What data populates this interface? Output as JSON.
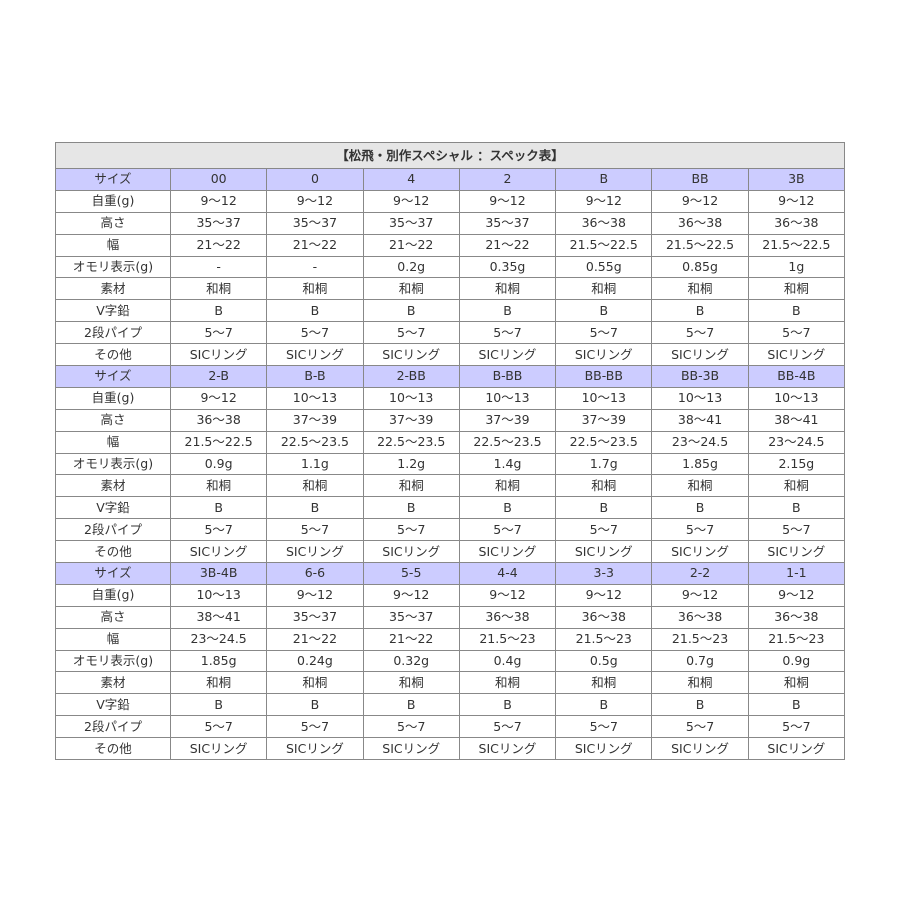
{
  "title": "【松飛・別作スペシャル ：スペック表】",
  "colors": {
    "header_bg": "#ccccff",
    "title_bg": "#e6e6e6",
    "border": "#888888"
  },
  "row_labels": [
    "自重(g)",
    "高さ",
    "幅",
    "オモリ表示(g)",
    "素材",
    "V字鉛",
    "2段パイプ",
    "その他"
  ],
  "size_label": "サイズ",
  "blocks": [
    {
      "sizes": [
        "00",
        "0",
        "4",
        "2",
        "B",
        "BB",
        "3B"
      ],
      "rows": [
        [
          "9～12",
          "9～12",
          "9～12",
          "9～12",
          "9～12",
          "9～12",
          "9～12"
        ],
        [
          "35～37",
          "35～37",
          "35～37",
          "35～37",
          "36～38",
          "36～38",
          "36～38"
        ],
        [
          "21～22",
          "21～22",
          "21～22",
          "21～22",
          "21.5～22.5",
          "21.5～22.5",
          "21.5～22.5"
        ],
        [
          "-",
          "-",
          "0.2g",
          "0.35g",
          "0.55g",
          "0.85g",
          "1g"
        ],
        [
          "和桐",
          "和桐",
          "和桐",
          "和桐",
          "和桐",
          "和桐",
          "和桐"
        ],
        [
          "B",
          "B",
          "B",
          "B",
          "B",
          "B",
          "B"
        ],
        [
          "5～7",
          "5～7",
          "5～7",
          "5～7",
          "5～7",
          "5～7",
          "5～7"
        ],
        [
          "SICリング",
          "SICリング",
          "SICリング",
          "SICリング",
          "SICリング",
          "SICリング",
          "SICリング"
        ]
      ]
    },
    {
      "sizes": [
        "2-B",
        "B-B",
        "2-BB",
        "B-BB",
        "BB-BB",
        "BB-3B",
        "BB-4B"
      ],
      "rows": [
        [
          "9～12",
          "10～13",
          "10～13",
          "10～13",
          "10～13",
          "10～13",
          "10～13"
        ],
        [
          "36～38",
          "37～39",
          "37～39",
          "37～39",
          "37～39",
          "38～41",
          "38～41"
        ],
        [
          "21.5～22.5",
          "22.5～23.5",
          "22.5～23.5",
          "22.5～23.5",
          "22.5～23.5",
          "23～24.5",
          "23～24.5"
        ],
        [
          "0.9g",
          "1.1g",
          "1.2g",
          "1.4g",
          "1.7g",
          "1.85g",
          "2.15g"
        ],
        [
          "和桐",
          "和桐",
          "和桐",
          "和桐",
          "和桐",
          "和桐",
          "和桐"
        ],
        [
          "B",
          "B",
          "B",
          "B",
          "B",
          "B",
          "B"
        ],
        [
          "5～7",
          "5～7",
          "5～7",
          "5～7",
          "5～7",
          "5～7",
          "5～7"
        ],
        [
          "SICリング",
          "SICリング",
          "SICリング",
          "SICリング",
          "SICリング",
          "SICリング",
          "SICリング"
        ]
      ]
    },
    {
      "sizes": [
        "3B-4B",
        "6-6",
        "5-5",
        "4-4",
        "3-3",
        "2-2",
        "1-1"
      ],
      "rows": [
        [
          "10～13",
          "9～12",
          "9～12",
          "9～12",
          "9～12",
          "9～12",
          "9～12"
        ],
        [
          "38～41",
          "35～37",
          "35～37",
          "36～38",
          "36～38",
          "36～38",
          "36～38"
        ],
        [
          "23～24.5",
          "21～22",
          "21～22",
          "21.5～23",
          "21.5～23",
          "21.5～23",
          "21.5～23"
        ],
        [
          "1.85g",
          "0.24g",
          "0.32g",
          "0.4g",
          "0.5g",
          "0.7g",
          "0.9g"
        ],
        [
          "和桐",
          "和桐",
          "和桐",
          "和桐",
          "和桐",
          "和桐",
          "和桐"
        ],
        [
          "B",
          "B",
          "B",
          "B",
          "B",
          "B",
          "B"
        ],
        [
          "5～7",
          "5～7",
          "5～7",
          "5～7",
          "5～7",
          "5～7",
          "5～7"
        ],
        [
          "SICリング",
          "SICリング",
          "SICリング",
          "SICリング",
          "SICリング",
          "SICリング",
          "SICリング"
        ]
      ]
    }
  ]
}
